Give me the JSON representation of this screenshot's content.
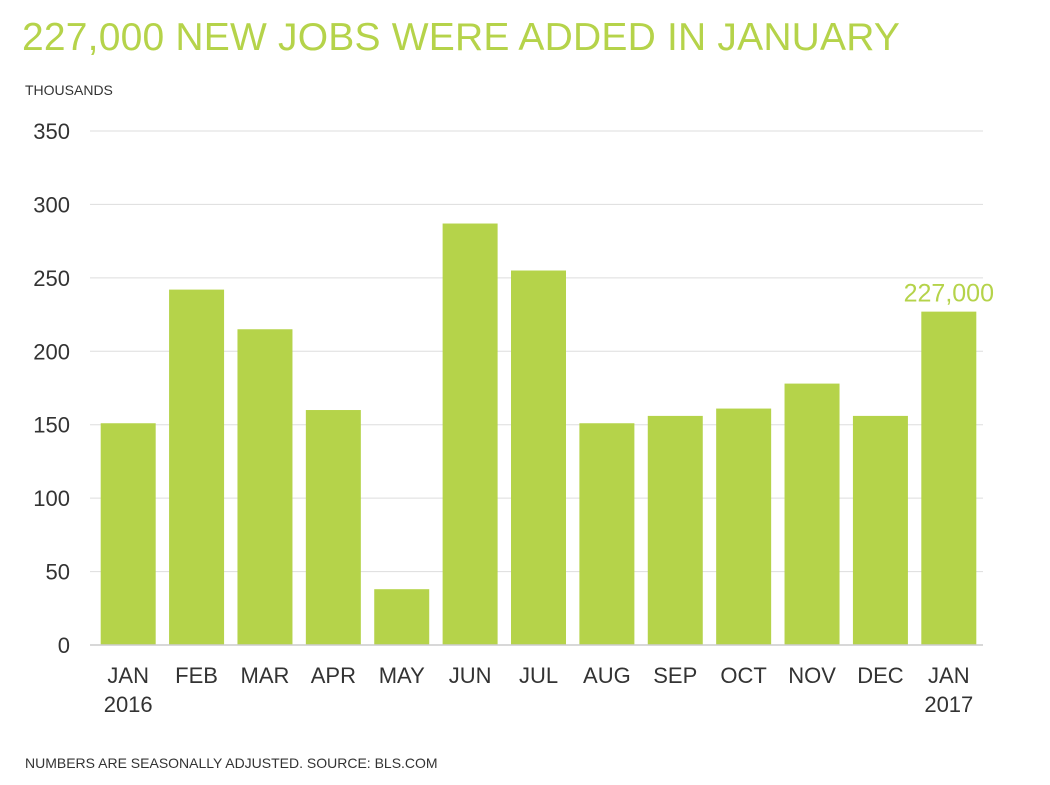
{
  "title": "227,000 NEW JOBS WERE ADDED IN JANUARY",
  "units_label": "THOUSANDS",
  "footer": "NUMBERS ARE SEASONALLY ADJUSTED. SOURCE: BLS.COM",
  "colors": {
    "bar": "#b5d34a",
    "accent_text": "#b5d34a",
    "grid": "#dddddd",
    "text": "#333333"
  },
  "chart_data": {
    "type": "bar",
    "title": "227,000 NEW JOBS WERE ADDED IN JANUARY",
    "ylabel": "THOUSANDS",
    "xlabel": "",
    "categories": [
      [
        "JAN",
        "2016"
      ],
      [
        "FEB"
      ],
      [
        "MAR"
      ],
      [
        "APR"
      ],
      [
        "MAY"
      ],
      [
        "JUN"
      ],
      [
        "JUL"
      ],
      [
        "AUG"
      ],
      [
        "SEP"
      ],
      [
        "OCT"
      ],
      [
        "NOV"
      ],
      [
        "DEC"
      ],
      [
        "JAN",
        "2017"
      ]
    ],
    "values": [
      151,
      242,
      215,
      160,
      38,
      287,
      255,
      151,
      156,
      161,
      178,
      156,
      227
    ],
    "ylim": [
      0,
      350
    ],
    "yticks": [
      0,
      50,
      100,
      150,
      200,
      250,
      300,
      350
    ],
    "grid": true,
    "annotations": [
      {
        "index": 12,
        "text": "227,000"
      }
    ]
  }
}
